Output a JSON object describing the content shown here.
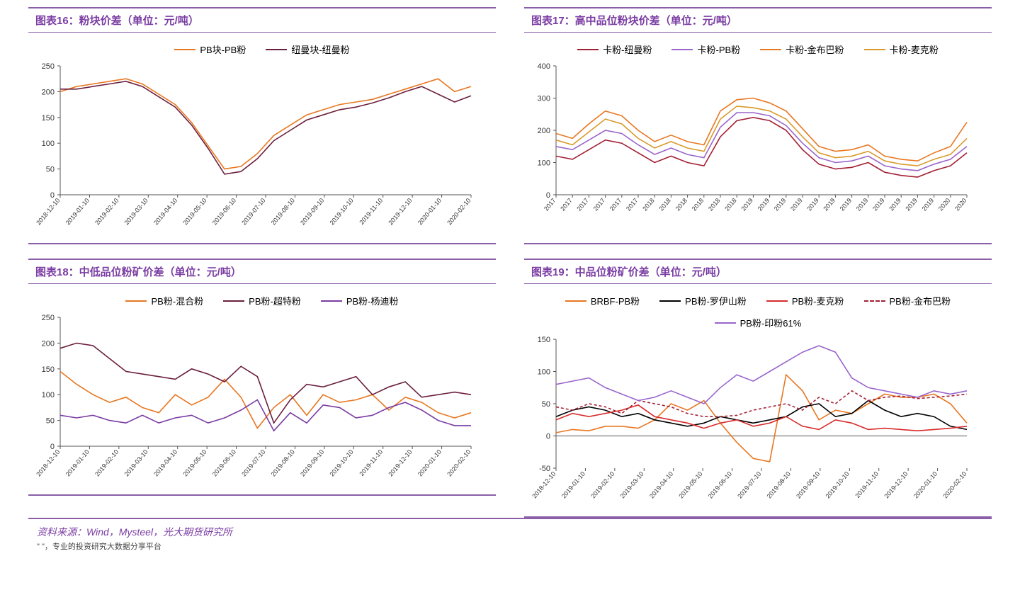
{
  "colors": {
    "accent": "#8a5fa8",
    "orange": "#e87722",
    "maroon": "#6b1f3e",
    "purple": "#9966cc",
    "darkred": "#a31f34",
    "gold": "#d99a2b",
    "black": "#000000",
    "red": "#d82c2c",
    "grid": "#cccccc"
  },
  "source_text": "资料来源：Wind，Mysteel，光大期货研究所",
  "footnote_text": "\"            \"，专业的投资研究大数据分享平台",
  "x_labels_monthly": [
    "2018-12-10",
    "2019-01-10",
    "2019-02-10",
    "2019-03-10",
    "2019-04-10",
    "2019-05-10",
    "2019-06-10",
    "2019-07-10",
    "2019-08-10",
    "2019-09-10",
    "2019-10-10",
    "2019-11-10",
    "2019-12-10",
    "2020-01-10",
    "2020-02-10"
  ],
  "x_labels_years": [
    "2017",
    "2017",
    "2017",
    "2017",
    "2017",
    "2017",
    "2018",
    "2018",
    "2018",
    "2018",
    "2018",
    "2018",
    "2019",
    "2019",
    "2019",
    "2019",
    "2019",
    "2019",
    "2019",
    "2019",
    "2019",
    "2019",
    "2019",
    "2019",
    "2020",
    "2020"
  ],
  "charts": [
    {
      "id": "c16",
      "title": "图表16：粉块价差（单位：元/吨）",
      "ylim": [
        0,
        250
      ],
      "ytick_step": 50,
      "xcount": 15,
      "xlabels_key": "x_labels_monthly",
      "xlabel_rotated": true,
      "series": [
        {
          "label": "PB块-PB粉",
          "color": "#e87722",
          "dash": false,
          "data": [
            200,
            210,
            215,
            220,
            225,
            215,
            195,
            175,
            140,
            95,
            50,
            55,
            80,
            115,
            135,
            155,
            165,
            175,
            180,
            185,
            195,
            205,
            215,
            225,
            200,
            210
          ]
        },
        {
          "label": "纽曼块-纽曼粉",
          "color": "#6b1f3e",
          "dash": false,
          "data": [
            205,
            205,
            210,
            215,
            220,
            210,
            190,
            170,
            135,
            90,
            40,
            45,
            70,
            105,
            125,
            145,
            155,
            165,
            170,
            178,
            188,
            200,
            210,
            195,
            180,
            192
          ]
        }
      ],
      "n": 26
    },
    {
      "id": "c17",
      "title": "图表17：高中品位粉块价差（单位：元/吨）",
      "ylim": [
        0,
        400
      ],
      "ytick_step": 100,
      "xcount": 26,
      "xlabels_key": "x_labels_years",
      "xlabel_rotated": true,
      "series": [
        {
          "label": "卡粉-纽曼粉",
          "color": "#a31f34",
          "dash": false,
          "data": [
            120,
            110,
            140,
            170,
            160,
            130,
            100,
            120,
            100,
            90,
            180,
            230,
            240,
            230,
            200,
            140,
            95,
            80,
            85,
            100,
            70,
            60,
            55,
            75,
            90,
            130
          ]
        },
        {
          "label": "卡粉-PB粉",
          "color": "#9966cc",
          "dash": false,
          "data": [
            150,
            140,
            170,
            200,
            190,
            155,
            125,
            145,
            125,
            115,
            210,
            255,
            255,
            245,
            215,
            160,
            115,
            100,
            105,
            120,
            90,
            80,
            75,
            95,
            110,
            150
          ]
        },
        {
          "label": "卡粉-金布巴粉",
          "color": "#e87722",
          "dash": false,
          "data": [
            190,
            175,
            220,
            260,
            245,
            200,
            165,
            185,
            165,
            155,
            260,
            295,
            300,
            285,
            260,
            205,
            150,
            135,
            140,
            155,
            120,
            110,
            105,
            130,
            150,
            225
          ]
        },
        {
          "label": "卡粉-麦克粉",
          "color": "#d99a2b",
          "dash": false,
          "data": [
            170,
            155,
            195,
            235,
            220,
            175,
            145,
            165,
            145,
            135,
            235,
            275,
            270,
            260,
            235,
            180,
            130,
            115,
            120,
            135,
            105,
            95,
            90,
            110,
            125,
            175
          ]
        }
      ],
      "n": 26
    },
    {
      "id": "c18",
      "title": "图表18：中低品位粉矿价差（单位：元/吨）",
      "ylim": [
        0,
        250
      ],
      "ytick_step": 50,
      "xcount": 15,
      "xlabels_key": "x_labels_monthly",
      "xlabel_rotated": true,
      "series": [
        {
          "label": "PB粉-混合粉",
          "color": "#e87722",
          "dash": false,
          "data": [
            145,
            120,
            100,
            85,
            95,
            75,
            65,
            100,
            80,
            95,
            130,
            95,
            35,
            75,
            100,
            60,
            100,
            85,
            90,
            100,
            70,
            95,
            85,
            65,
            55,
            65
          ]
        },
        {
          "label": "PB粉-超特粉",
          "color": "#6b1f3e",
          "dash": false,
          "data": [
            190,
            200,
            195,
            170,
            145,
            140,
            135,
            130,
            150,
            140,
            125,
            155,
            135,
            45,
            90,
            120,
            115,
            125,
            135,
            100,
            115,
            125,
            95,
            100,
            105,
            100
          ]
        },
        {
          "label": "PB粉-杨迪粉",
          "color": "#7a3ca3",
          "dash": false,
          "data": [
            60,
            55,
            60,
            50,
            45,
            60,
            45,
            55,
            60,
            45,
            55,
            70,
            90,
            30,
            65,
            45,
            80,
            75,
            55,
            60,
            75,
            85,
            70,
            50,
            40,
            40
          ]
        }
      ],
      "n": 26
    },
    {
      "id": "c19",
      "title": "图表19：中品位粉矿价差（单位：元/吨）",
      "ylim": [
        -50,
        150
      ],
      "ytick_step": 50,
      "xcount": 15,
      "xlabels_key": "x_labels_monthly",
      "xlabel_rotated": true,
      "series": [
        {
          "label": "BRBF-PB粉",
          "color": "#e87722",
          "dash": false,
          "data": [
            5,
            10,
            8,
            15,
            15,
            12,
            25,
            50,
            40,
            55,
            20,
            -10,
            -35,
            -40,
            95,
            70,
            25,
            40,
            35,
            50,
            65,
            60,
            60,
            65,
            50,
            20
          ]
        },
        {
          "label": "PB粉-罗伊山粉",
          "color": "#000000",
          "dash": false,
          "data": [
            30,
            40,
            45,
            40,
            30,
            35,
            25,
            20,
            15,
            20,
            30,
            25,
            20,
            25,
            30,
            45,
            50,
            30,
            35,
            55,
            40,
            30,
            35,
            30,
            15,
            10
          ]
        },
        {
          "label": "PB粉-麦克粉",
          "color": "#d82c2c",
          "dash": false,
          "data": [
            25,
            35,
            30,
            35,
            40,
            48,
            30,
            25,
            20,
            12,
            20,
            25,
            15,
            20,
            30,
            15,
            10,
            25,
            20,
            10,
            12,
            10,
            8,
            10,
            12,
            15
          ]
        },
        {
          "label": "PB粉-金布巴粉",
          "color": "#a31f34",
          "dash": true,
          "data": [
            45,
            40,
            50,
            45,
            35,
            55,
            50,
            45,
            35,
            30,
            30,
            32,
            40,
            45,
            50,
            40,
            60,
            50,
            70,
            55,
            60,
            62,
            58,
            60,
            62,
            65
          ]
        },
        {
          "label": "PB粉-印粉61%",
          "color": "#9966cc",
          "dash": false,
          "data": [
            80,
            85,
            90,
            75,
            65,
            55,
            60,
            70,
            60,
            50,
            75,
            95,
            85,
            100,
            115,
            130,
            140,
            130,
            90,
            75,
            70,
            65,
            60,
            70,
            65,
            70
          ]
        }
      ],
      "n": 26
    }
  ]
}
